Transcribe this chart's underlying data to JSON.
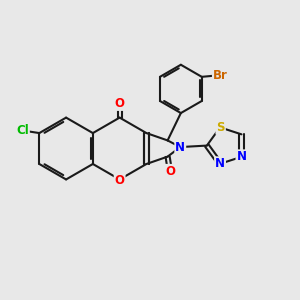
{
  "background_color": "#e8e8e8",
  "bond_color": "#1a1a1a",
  "atom_colors": {
    "O": "#ff0000",
    "N": "#0000ff",
    "S": "#ccaa00",
    "Cl": "#00bb00",
    "Br": "#cc6600",
    "C": "#1a1a1a"
  },
  "figsize": [
    3.0,
    3.0
  ],
  "dpi": 100
}
